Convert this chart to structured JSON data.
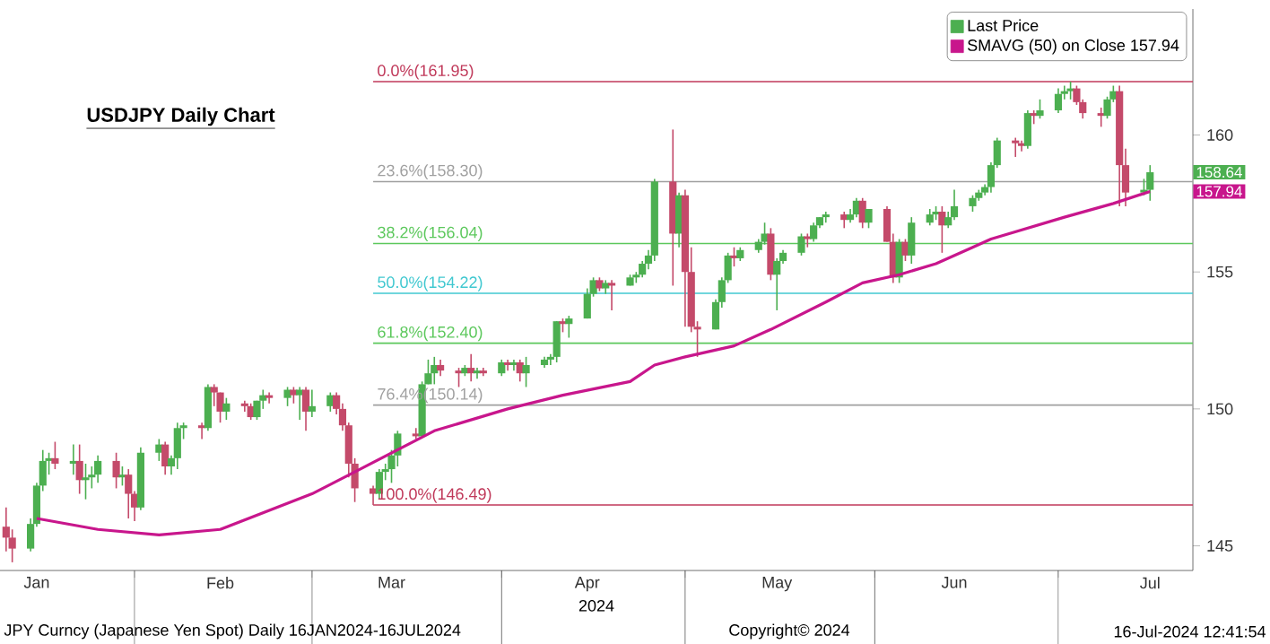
{
  "chart_data": {
    "type": "candlestick",
    "title": "USDJPY Daily Chart",
    "xlabel": "2024",
    "legend": "top right",
    "xlim": [
      "2024-01-10",
      "2024-07-23"
    ],
    "ylim": [
      144.1,
      164.6
    ],
    "yticks": [
      145,
      150,
      155,
      160
    ],
    "xticks": [
      {
        "value": "2024-01-16",
        "label": "Jan"
      },
      {
        "value": "2024-02-01",
        "label": null
      },
      {
        "value": "2024-02-15",
        "label": "Feb"
      },
      {
        "value": "2024-03-01",
        "label": null
      },
      {
        "value": "2024-03-14",
        "label": "Mar"
      },
      {
        "value": "2024-04-01",
        "label": null
      },
      {
        "value": "2024-04-15",
        "label": "Apr"
      },
      {
        "value": "2024-05-01",
        "label": null
      },
      {
        "value": "2024-05-16",
        "label": "May"
      },
      {
        "value": "2024-06-01",
        "label": null
      },
      {
        "value": "2024-06-14",
        "label": "Jun"
      },
      {
        "value": "2024-07-01",
        "label": null
      },
      {
        "value": "2024-07-16",
        "label": "Jul"
      }
    ],
    "ref_lines": [
      {
        "axis": "y",
        "value": 161.95,
        "label": "0.0%(161.95)",
        "color": "#c0395a"
      },
      {
        "axis": "y",
        "value": 158.3,
        "label": "23.6%(158.30)",
        "color": "#a0a0a0"
      },
      {
        "axis": "y",
        "value": 156.04,
        "label": "38.2%(156.04)",
        "color": "#5cc85c"
      },
      {
        "axis": "y",
        "value": 154.22,
        "label": "50.0%(154.22)",
        "color": "#40c8d0"
      },
      {
        "axis": "y",
        "value": 152.4,
        "label": "61.8%(152.40)",
        "color": "#5cc85c"
      },
      {
        "axis": "y",
        "value": 150.14,
        "label": "76.4%(150.14)",
        "color": "#a0a0a0"
      },
      {
        "axis": "y",
        "value": 146.49,
        "label": "100.0%(146.49)",
        "color": "#c0395a"
      }
    ],
    "annotations": [
      "JPY Curncy (Japanese Yen Spot)  Daily 16JAN2024-16JUL2024",
      "Copyright© 2024",
      "16-Jul-2024 12:41:54",
      "158.64",
      "157.94"
    ],
    "series": [
      {
        "name": "Last Price",
        "type": "candlestick",
        "color": "#4caf50",
        "x": [
          "2024-01-11",
          "2024-01-12",
          "2024-01-15",
          "2024-01-16",
          "2024-01-17",
          "2024-01-18",
          "2024-01-19",
          "2024-01-22",
          "2024-01-23",
          "2024-01-24",
          "2024-01-25",
          "2024-01-26",
          "2024-01-29",
          "2024-01-30",
          "2024-01-31",
          "2024-02-01",
          "2024-02-02",
          "2024-02-05",
          "2024-02-06",
          "2024-02-07",
          "2024-02-08",
          "2024-02-09",
          "2024-02-12",
          "2024-02-13",
          "2024-02-14",
          "2024-02-15",
          "2024-02-16",
          "2024-02-19",
          "2024-02-20",
          "2024-02-21",
          "2024-02-22",
          "2024-02-23",
          "2024-02-26",
          "2024-02-27",
          "2024-02-28",
          "2024-02-29",
          "2024-03-01",
          "2024-03-04",
          "2024-03-05",
          "2024-03-06",
          "2024-03-07",
          "2024-03-08",
          "2024-03-11",
          "2024-03-12",
          "2024-03-13",
          "2024-03-14",
          "2024-03-15",
          "2024-03-18",
          "2024-03-19",
          "2024-03-20",
          "2024-03-21",
          "2024-03-22",
          "2024-03-25",
          "2024-03-26",
          "2024-03-27",
          "2024-03-28",
          "2024-03-29",
          "2024-04-01",
          "2024-04-02",
          "2024-04-03",
          "2024-04-04",
          "2024-04-05",
          "2024-04-08",
          "2024-04-09",
          "2024-04-10",
          "2024-04-11",
          "2024-04-12",
          "2024-04-15",
          "2024-04-16",
          "2024-04-17",
          "2024-04-18",
          "2024-04-19",
          "2024-04-22",
          "2024-04-23",
          "2024-04-24",
          "2024-04-25",
          "2024-04-26",
          "2024-04-29",
          "2024-04-30",
          "2024-05-01",
          "2024-05-02",
          "2024-05-03",
          "2024-05-06",
          "2024-05-07",
          "2024-05-08",
          "2024-05-09",
          "2024-05-10",
          "2024-05-13",
          "2024-05-14",
          "2024-05-15",
          "2024-05-16",
          "2024-05-17",
          "2024-05-20",
          "2024-05-21",
          "2024-05-22",
          "2024-05-23",
          "2024-05-24",
          "2024-05-27",
          "2024-05-28",
          "2024-05-29",
          "2024-05-30",
          "2024-05-31",
          "2024-06-03",
          "2024-06-04",
          "2024-06-05",
          "2024-06-06",
          "2024-06-07",
          "2024-06-10",
          "2024-06-11",
          "2024-06-12",
          "2024-06-13",
          "2024-06-14",
          "2024-06-17",
          "2024-06-18",
          "2024-06-19",
          "2024-06-20",
          "2024-06-21",
          "2024-06-24",
          "2024-06-25",
          "2024-06-26",
          "2024-06-27",
          "2024-06-28",
          "2024-07-01",
          "2024-07-02",
          "2024-07-03",
          "2024-07-04",
          "2024-07-05",
          "2024-07-08",
          "2024-07-09",
          "2024-07-10",
          "2024-07-11",
          "2024-07-12",
          "2024-07-15",
          "2024-07-16"
        ],
        "ohlc": [
          [
            145.7,
            146.4,
            144.8,
            145.3
          ],
          [
            145.3,
            145.6,
            144.4,
            144.9
          ],
          [
            144.9,
            146.0,
            144.8,
            145.8
          ],
          [
            145.8,
            147.3,
            145.7,
            147.2
          ],
          [
            147.2,
            148.5,
            147.0,
            148.1
          ],
          [
            148.1,
            148.4,
            147.6,
            148.2
          ],
          [
            148.2,
            148.8,
            147.8,
            148.0
          ],
          [
            148.0,
            148.7,
            147.6,
            148.1
          ],
          [
            148.1,
            148.7,
            146.9,
            147.4
          ],
          [
            147.4,
            148.0,
            146.7,
            147.5
          ],
          [
            147.5,
            147.9,
            147.1,
            147.6
          ],
          [
            147.6,
            148.3,
            147.3,
            148.1
          ],
          [
            148.1,
            148.4,
            147.1,
            147.5
          ],
          [
            147.5,
            147.9,
            147.2,
            147.6
          ],
          [
            147.6,
            147.8,
            146.0,
            146.9
          ],
          [
            146.9,
            147.0,
            145.9,
            146.4
          ],
          [
            146.4,
            148.6,
            146.3,
            148.4
          ],
          [
            148.4,
            148.9,
            148.1,
            148.7
          ],
          [
            148.7,
            148.8,
            147.6,
            147.9
          ],
          [
            147.9,
            148.3,
            147.6,
            148.2
          ],
          [
            148.2,
            149.5,
            147.8,
            149.3
          ],
          [
            149.3,
            149.5,
            148.9,
            149.4
          ],
          [
            149.4,
            149.5,
            148.9,
            149.3
          ],
          [
            149.3,
            150.9,
            149.2,
            150.8
          ],
          [
            150.8,
            150.9,
            150.1,
            150.6
          ],
          [
            150.6,
            150.6,
            149.5,
            149.9
          ],
          [
            149.9,
            150.4,
            149.6,
            150.2
          ],
          [
            150.2,
            150.3,
            149.9,
            150.1
          ],
          [
            150.1,
            150.2,
            149.6,
            149.7
          ],
          [
            149.7,
            150.3,
            149.6,
            150.3
          ],
          [
            150.3,
            150.7,
            150.0,
            150.5
          ],
          [
            150.5,
            150.6,
            150.2,
            150.4
          ],
          [
            150.4,
            150.8,
            150.1,
            150.7
          ],
          [
            150.7,
            150.8,
            150.2,
            150.5
          ],
          [
            150.5,
            150.8,
            149.6,
            150.7
          ],
          [
            150.7,
            150.8,
            149.2,
            149.9
          ],
          [
            149.9,
            150.7,
            149.7,
            150.1
          ],
          [
            150.1,
            150.6,
            149.9,
            150.5
          ],
          [
            150.5,
            150.6,
            149.8,
            150.0
          ],
          [
            150.0,
            150.2,
            149.2,
            149.4
          ],
          [
            149.4,
            149.5,
            147.5,
            148.0
          ],
          [
            148.0,
            148.2,
            146.6,
            147.1
          ],
          [
            147.1,
            147.2,
            146.49,
            146.9
          ],
          [
            146.9,
            147.8,
            146.7,
            147.7
          ],
          [
            147.7,
            148.0,
            147.4,
            147.8
          ],
          [
            147.8,
            148.5,
            147.3,
            148.3
          ],
          [
            148.3,
            149.2,
            147.9,
            149.1
          ],
          [
            149.1,
            149.3,
            148.9,
            149.0
          ],
          [
            149.0,
            151.0,
            149.0,
            150.9
          ],
          [
            150.9,
            151.8,
            150.9,
            151.3
          ],
          [
            151.3,
            151.9,
            150.9,
            151.6
          ],
          [
            151.6,
            151.8,
            151.2,
            151.4
          ],
          [
            151.4,
            151.5,
            150.8,
            151.3
          ],
          [
            151.3,
            151.6,
            151.2,
            151.5
          ],
          [
            151.5,
            152.0,
            151.0,
            151.3
          ],
          [
            151.3,
            151.5,
            151.1,
            151.4
          ],
          [
            151.4,
            151.5,
            151.2,
            151.3
          ],
          [
            151.3,
            151.8,
            151.2,
            151.7
          ],
          [
            151.7,
            151.8,
            151.4,
            151.6
          ],
          [
            151.6,
            151.8,
            151.4,
            151.7
          ],
          [
            151.7,
            151.8,
            151.0,
            151.3
          ],
          [
            151.3,
            151.9,
            150.8,
            151.6
          ],
          [
            151.6,
            151.9,
            151.5,
            151.8
          ],
          [
            151.8,
            152.0,
            151.6,
            151.9
          ],
          [
            151.9,
            153.2,
            151.7,
            153.2
          ],
          [
            153.2,
            153.3,
            152.8,
            153.1
          ],
          [
            153.1,
            153.4,
            152.6,
            153.3
          ],
          [
            153.3,
            154.4,
            153.3,
            154.2
          ],
          [
            154.2,
            154.8,
            154.1,
            154.7
          ],
          [
            154.7,
            154.8,
            154.3,
            154.4
          ],
          [
            154.4,
            154.7,
            154.2,
            154.6
          ],
          [
            154.6,
            154.7,
            153.6,
            154.5
          ],
          [
            154.5,
            154.9,
            154.5,
            154.8
          ],
          [
            154.8,
            155.0,
            154.6,
            154.9
          ],
          [
            154.9,
            155.4,
            154.8,
            155.3
          ],
          [
            155.3,
            155.8,
            155.1,
            155.6
          ],
          [
            155.6,
            158.4,
            155.4,
            158.3
          ],
          [
            158.3,
            160.2,
            154.5,
            156.4
          ],
          [
            156.4,
            157.9,
            155.9,
            157.8
          ],
          [
            157.8,
            158.0,
            153.0,
            155.0
          ],
          [
            155.0,
            155.9,
            152.8,
            153.0
          ],
          [
            153.0,
            153.2,
            151.9,
            152.9
          ],
          [
            152.9,
            154.0,
            152.9,
            153.9
          ],
          [
            153.9,
            154.8,
            153.7,
            154.7
          ],
          [
            154.7,
            155.7,
            154.6,
            155.6
          ],
          [
            155.6,
            155.9,
            155.2,
            155.5
          ],
          [
            155.5,
            155.9,
            155.4,
            155.8
          ],
          [
            155.8,
            156.2,
            155.7,
            156.1
          ],
          [
            156.1,
            156.8,
            156.0,
            156.4
          ],
          [
            156.4,
            156.6,
            154.7,
            154.9
          ],
          [
            154.9,
            155.5,
            153.6,
            155.4
          ],
          [
            155.4,
            155.8,
            155.3,
            155.7
          ],
          [
            155.7,
            156.4,
            155.6,
            156.3
          ],
          [
            156.3,
            156.4,
            155.9,
            156.2
          ],
          [
            156.2,
            156.8,
            156.1,
            156.7
          ],
          [
            156.7,
            157.0,
            156.6,
            157.0
          ],
          [
            157.0,
            157.2,
            156.8,
            157.1
          ],
          [
            157.1,
            157.2,
            156.6,
            156.9
          ],
          [
            156.9,
            157.3,
            156.8,
            157.1
          ],
          [
            157.1,
            157.7,
            157.0,
            157.6
          ],
          [
            157.6,
            157.7,
            156.6,
            156.8
          ],
          [
            156.8,
            157.3,
            156.6,
            157.3
          ],
          [
            157.3,
            157.4,
            156.1,
            156.1
          ],
          [
            156.1,
            156.4,
            154.6,
            154.8
          ],
          [
            154.8,
            156.2,
            154.6,
            156.1
          ],
          [
            156.1,
            156.2,
            155.4,
            155.6
          ],
          [
            155.6,
            157.0,
            155.3,
            156.8
          ],
          [
            156.8,
            157.3,
            156.7,
            157.1
          ],
          [
            157.1,
            157.4,
            156.9,
            157.2
          ],
          [
            157.2,
            157.4,
            155.7,
            156.7
          ],
          [
            156.7,
            157.2,
            156.6,
            157.0
          ],
          [
            157.0,
            158.0,
            156.9,
            157.4
          ],
          [
            157.4,
            157.8,
            157.2,
            157.7
          ],
          [
            157.7,
            158.0,
            157.6,
            157.9
          ],
          [
            157.9,
            158.2,
            157.8,
            158.1
          ],
          [
            158.1,
            159.0,
            157.9,
            158.9
          ],
          [
            158.9,
            159.9,
            158.8,
            159.8
          ],
          [
            159.8,
            159.9,
            159.2,
            159.7
          ],
          [
            159.7,
            159.8,
            159.4,
            159.6
          ],
          [
            159.6,
            160.9,
            159.5,
            160.8
          ],
          [
            160.8,
            160.9,
            160.4,
            160.7
          ],
          [
            160.7,
            161.3,
            160.6,
            160.9
          ],
          [
            160.9,
            161.7,
            160.8,
            161.5
          ],
          [
            161.5,
            161.8,
            161.3,
            161.6
          ],
          [
            161.6,
            161.95,
            161.3,
            161.7
          ],
          [
            161.7,
            161.8,
            161.1,
            161.2
          ],
          [
            161.2,
            161.3,
            160.6,
            160.8
          ],
          [
            160.8,
            161.0,
            160.3,
            160.7
          ],
          [
            160.7,
            161.4,
            160.6,
            161.3
          ],
          [
            161.3,
            161.8,
            161.2,
            161.6
          ],
          [
            161.6,
            161.8,
            157.4,
            158.9
          ],
          [
            158.9,
            159.5,
            157.4,
            157.9
          ],
          [
            157.9,
            158.4,
            157.8,
            158.0
          ],
          [
            158.0,
            158.9,
            157.6,
            158.64
          ]
        ],
        "colors": [
          "#c44a6a",
          "#c44a6a",
          "#4caf50",
          "#4caf50",
          "#4caf50",
          "#4caf50",
          "#c44a6a",
          "#4caf50",
          "#c44a6a",
          "#4caf50",
          "#4caf50",
          "#4caf50",
          "#c44a6a",
          "#4caf50",
          "#c44a6a",
          "#c44a6a",
          "#4caf50",
          "#4caf50",
          "#c44a6a",
          "#4caf50",
          "#4caf50",
          "#4caf50",
          "#c44a6a",
          "#4caf50",
          "#c44a6a",
          "#c44a6a",
          "#4caf50",
          "#c44a6a",
          "#c44a6a",
          "#4caf50",
          "#4caf50",
          "#c44a6a",
          "#4caf50",
          "#c44a6a",
          "#4caf50",
          "#c44a6a",
          "#4caf50",
          "#4caf50",
          "#c44a6a",
          "#c44a6a",
          "#c44a6a",
          "#c44a6a",
          "#c44a6a",
          "#4caf50",
          "#4caf50",
          "#4caf50",
          "#4caf50",
          "#c44a6a",
          "#4caf50",
          "#4caf50",
          "#4caf50",
          "#c44a6a",
          "#c44a6a",
          "#4caf50",
          "#c44a6a",
          "#4caf50",
          "#c44a6a",
          "#4caf50",
          "#c44a6a",
          "#4caf50",
          "#c44a6a",
          "#4caf50",
          "#4caf50",
          "#4caf50",
          "#4caf50",
          "#c44a6a",
          "#4caf50",
          "#4caf50",
          "#4caf50",
          "#c44a6a",
          "#4caf50",
          "#c44a6a",
          "#4caf50",
          "#4caf50",
          "#4caf50",
          "#4caf50",
          "#4caf50",
          "#c44a6a",
          "#4caf50",
          "#c44a6a",
          "#c44a6a",
          "#c44a6a",
          "#4caf50",
          "#4caf50",
          "#4caf50",
          "#c44a6a",
          "#4caf50",
          "#4caf50",
          "#4caf50",
          "#c44a6a",
          "#4caf50",
          "#4caf50",
          "#4caf50",
          "#c44a6a",
          "#4caf50",
          "#4caf50",
          "#4caf50",
          "#c44a6a",
          "#4caf50",
          "#4caf50",
          "#c44a6a",
          "#4caf50",
          "#c44a6a",
          "#c44a6a",
          "#4caf50",
          "#c44a6a",
          "#4caf50",
          "#4caf50",
          "#4caf50",
          "#c44a6a",
          "#4caf50",
          "#4caf50",
          "#4caf50",
          "#4caf50",
          "#4caf50",
          "#4caf50",
          "#4caf50",
          "#c44a6a",
          "#c44a6a",
          "#4caf50",
          "#c44a6a",
          "#4caf50",
          "#4caf50",
          "#4caf50",
          "#4caf50",
          "#c44a6a",
          "#c44a6a",
          "#c44a6a",
          "#4caf50",
          "#4caf50",
          "#c44a6a",
          "#c44a6a",
          "#4caf50",
          "#4caf50"
        ]
      },
      {
        "name": "SMAVG (50)  on Close 157.94",
        "type": "line",
        "color": "#c8168c",
        "x": [
          "2024-01-16",
          "2024-01-26",
          "2024-02-05",
          "2024-02-15",
          "2024-03-01",
          "2024-03-08",
          "2024-03-21",
          "2024-04-02",
          "2024-04-11",
          "2024-04-22",
          "2024-04-26",
          "2024-05-01",
          "2024-05-09",
          "2024-05-15",
          "2024-05-24",
          "2024-05-30",
          "2024-06-05",
          "2024-06-11",
          "2024-06-17",
          "2024-06-20",
          "2024-07-02",
          "2024-07-10",
          "2024-07-16"
        ],
        "values": [
          146.0,
          145.6,
          145.4,
          145.6,
          146.9,
          147.7,
          149.2,
          150.0,
          150.5,
          151.0,
          151.6,
          151.9,
          152.3,
          152.9,
          153.9,
          154.6,
          154.9,
          155.3,
          155.9,
          156.2,
          157.0,
          157.5,
          157.94
        ]
      }
    ]
  }
}
